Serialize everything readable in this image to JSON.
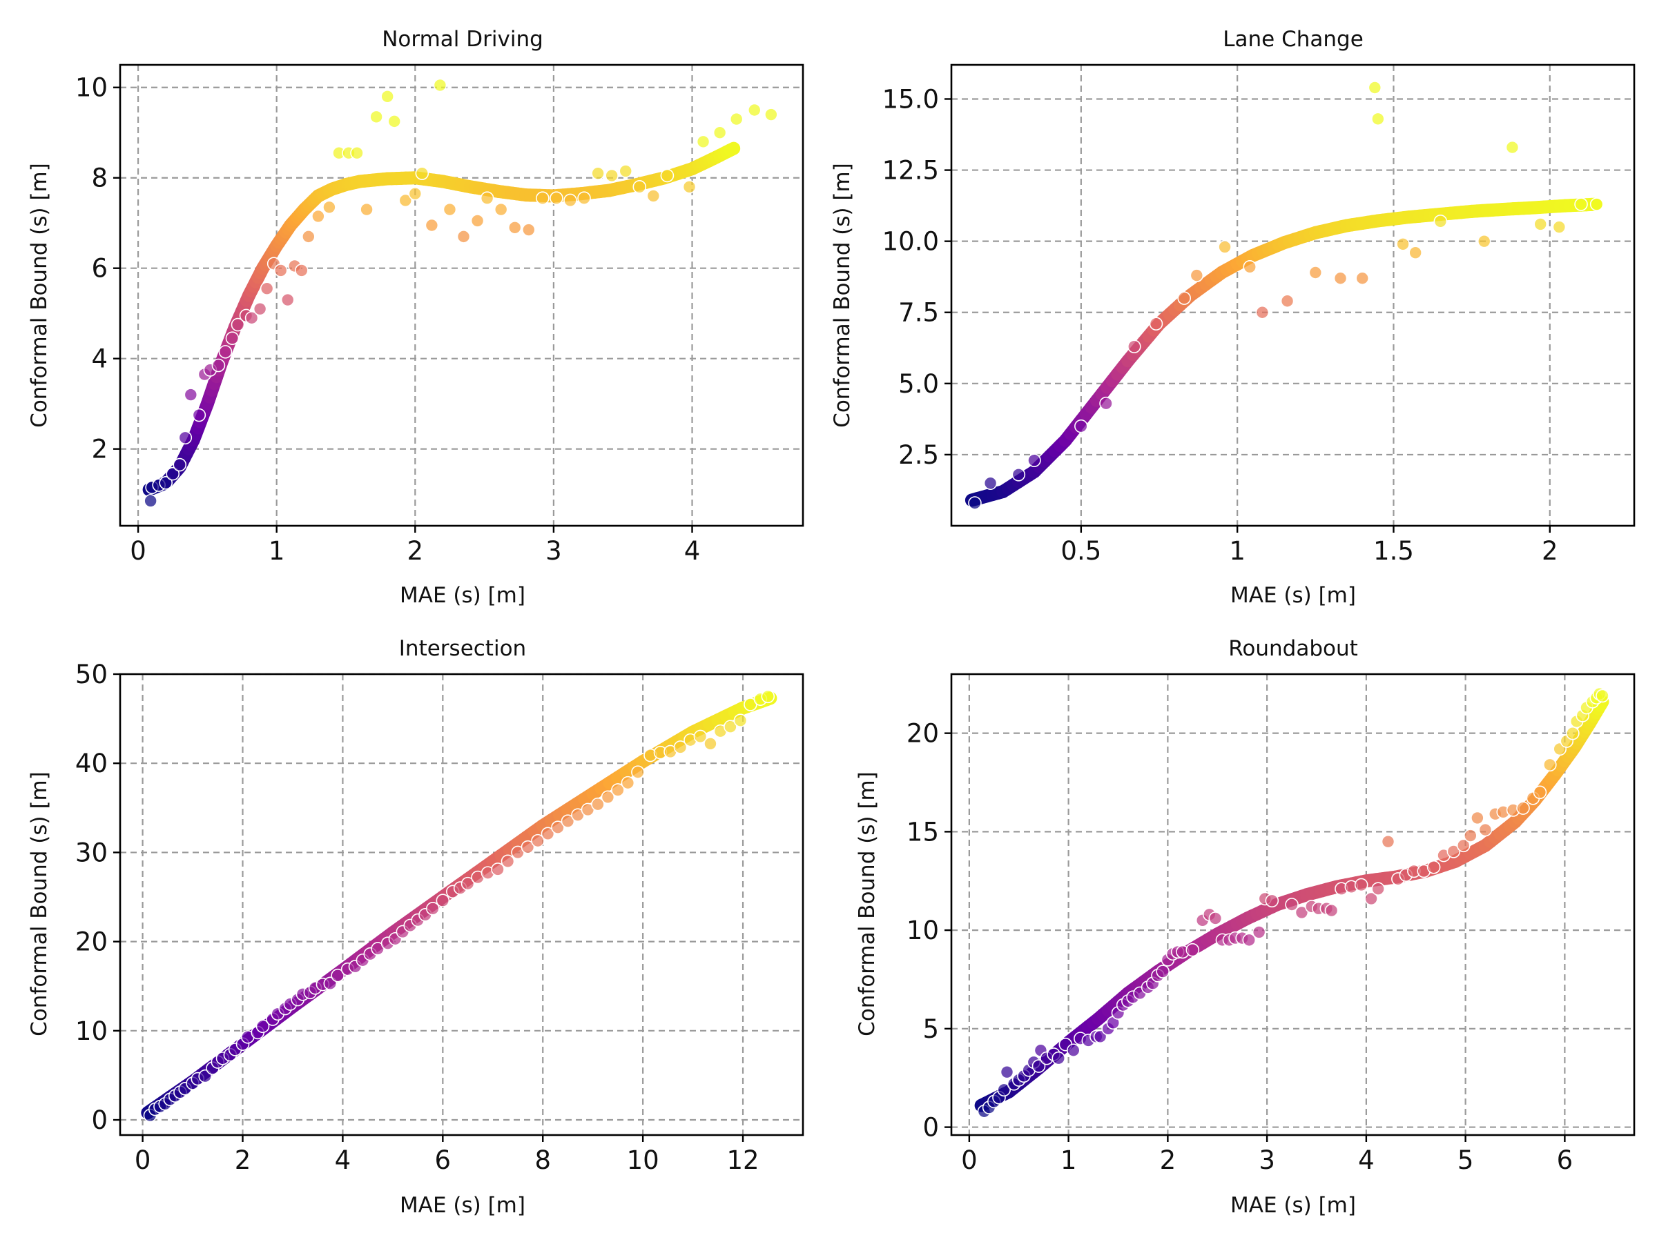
{
  "chart_data": [
    {
      "type": "scatter",
      "title": "Normal Driving",
      "xlabel": "MAE (s) [m]",
      "ylabel": "Conformal Bound (s) [m]",
      "xlim": [
        -0.13,
        4.8
      ],
      "ylim": [
        0.3,
        10.5
      ],
      "xticks": [
        0,
        1,
        2,
        3,
        4
      ],
      "yticks": [
        2,
        4,
        6,
        8,
        10
      ],
      "ytick_labels": [
        "2",
        "4",
        "6",
        "8",
        "10"
      ],
      "grid": true,
      "colormap": [
        "#0d0887",
        "#6a00a8",
        "#b12a90",
        "#e16462",
        "#fca636",
        "#f0f921"
      ],
      "trend": {
        "name": "fit",
        "x": [
          0.08,
          0.2,
          0.3,
          0.4,
          0.5,
          0.6,
          0.7,
          0.8,
          0.9,
          1.0,
          1.1,
          1.2,
          1.3,
          1.4,
          1.5,
          1.6,
          1.8,
          2.0,
          2.2,
          2.4,
          2.6,
          2.8,
          3.0,
          3.2,
          3.4,
          3.6,
          3.8,
          4.0,
          4.15,
          4.3
        ],
        "y": [
          1.1,
          1.25,
          1.6,
          2.2,
          3.0,
          3.9,
          4.7,
          5.4,
          6.0,
          6.5,
          6.95,
          7.3,
          7.6,
          7.75,
          7.85,
          7.92,
          7.98,
          8.0,
          7.92,
          7.8,
          7.7,
          7.62,
          7.6,
          7.65,
          7.72,
          7.85,
          8.0,
          8.2,
          8.42,
          8.65
        ]
      },
      "points": {
        "x": [
          0.09,
          0.1,
          0.15,
          0.2,
          0.25,
          0.3,
          0.34,
          0.38,
          0.44,
          0.48,
          0.52,
          0.58,
          0.63,
          0.68,
          0.72,
          0.78,
          0.82,
          0.88,
          0.93,
          0.98,
          1.03,
          1.08,
          1.13,
          1.18,
          1.23,
          1.3,
          1.38,
          1.45,
          1.52,
          1.58,
          1.65,
          1.72,
          1.8,
          1.85,
          1.93,
          2.0,
          2.05,
          2.12,
          2.18,
          2.25,
          2.35,
          2.45,
          2.52,
          2.62,
          2.72,
          2.82,
          2.92,
          3.02,
          3.12,
          3.22,
          3.32,
          3.42,
          3.52,
          3.62,
          3.72,
          3.82,
          3.98,
          4.08,
          4.2,
          4.32,
          4.45,
          4.57
        ],
        "y": [
          0.85,
          1.15,
          1.2,
          1.25,
          1.45,
          1.65,
          2.25,
          3.2,
          2.75,
          3.65,
          3.75,
          3.85,
          4.15,
          4.45,
          4.75,
          4.95,
          4.9,
          5.1,
          5.55,
          6.1,
          5.95,
          5.3,
          6.05,
          5.95,
          6.7,
          7.15,
          7.35,
          8.55,
          8.55,
          8.55,
          7.3,
          9.35,
          9.8,
          9.25,
          7.5,
          7.65,
          8.1,
          6.95,
          10.05,
          7.3,
          6.7,
          7.05,
          7.55,
          7.3,
          6.9,
          6.85,
          7.55,
          7.55,
          7.5,
          7.55,
          8.1,
          8.05,
          8.15,
          7.8,
          7.6,
          8.05,
          7.8,
          8.8,
          9.0,
          9.3,
          9.5,
          9.4
        ]
      }
    },
    {
      "type": "scatter",
      "title": "Lane Change",
      "xlabel": "MAE (s) [m]",
      "ylabel": "Conformal Bound (s) [m]",
      "xlim": [
        0.085,
        2.27
      ],
      "ylim": [
        0.0,
        16.2
      ],
      "xticks": [
        0.5,
        1.0,
        1.5,
        2.0
      ],
      "yticks": [
        2.5,
        5.0,
        7.5,
        10.0,
        12.5,
        15.0
      ],
      "ytick_labels": [
        "2.5",
        "5.0",
        "7.5",
        "10.0",
        "12.5",
        "15.0"
      ],
      "grid": true,
      "colormap": [
        "#0d0887",
        "#6a00a8",
        "#b12a90",
        "#e16462",
        "#fca636",
        "#f0f921"
      ],
      "trend": {
        "name": "fit",
        "x": [
          0.15,
          0.25,
          0.35,
          0.45,
          0.55,
          0.65,
          0.75,
          0.85,
          0.95,
          1.05,
          1.15,
          1.25,
          1.35,
          1.45,
          1.55,
          1.65,
          1.75,
          1.85,
          1.95,
          2.05,
          2.15
        ],
        "y": [
          0.9,
          1.2,
          1.9,
          3.0,
          4.4,
          5.8,
          7.1,
          8.1,
          8.9,
          9.5,
          9.95,
          10.3,
          10.55,
          10.72,
          10.85,
          10.95,
          11.05,
          11.12,
          11.18,
          11.25,
          11.3
        ]
      },
      "points": {
        "x": [
          0.16,
          0.21,
          0.3,
          0.35,
          0.5,
          0.58,
          0.67,
          0.74,
          0.83,
          0.87,
          0.96,
          1.04,
          1.08,
          1.16,
          1.25,
          1.33,
          1.4,
          1.44,
          1.45,
          1.53,
          1.57,
          1.65,
          1.79,
          1.88,
          1.97,
          2.03,
          2.1,
          2.15
        ],
        "y": [
          0.8,
          1.5,
          1.8,
          2.3,
          3.5,
          4.3,
          6.3,
          7.1,
          8.0,
          8.8,
          9.8,
          9.1,
          7.5,
          7.9,
          8.9,
          8.7,
          8.7,
          15.4,
          14.3,
          9.9,
          9.6,
          10.7,
          10.0,
          13.3,
          10.6,
          10.5,
          11.3,
          11.3
        ]
      }
    },
    {
      "type": "scatter",
      "title": "Intersection",
      "xlabel": "MAE (s) [m]",
      "ylabel": "Conformal Bound (s) [m]",
      "xlim": [
        -0.45,
        13.2
      ],
      "ylim": [
        -1.7,
        50
      ],
      "xticks": [
        0,
        2,
        4,
        6,
        8,
        10,
        12
      ],
      "yticks": [
        0,
        10,
        20,
        30,
        40,
        50
      ],
      "ytick_labels": [
        "0",
        "10",
        "20",
        "30",
        "40",
        "50"
      ],
      "grid": true,
      "colormap": [
        "#0d0887",
        "#6a00a8",
        "#b12a90",
        "#e16462",
        "#fca636",
        "#f0f921"
      ],
      "trend": {
        "name": "fit",
        "x": [
          0.1,
          1,
          2,
          3,
          4,
          5,
          6,
          7,
          8,
          9,
          10,
          11,
          12,
          12.55
        ],
        "y": [
          0.8,
          4.3,
          8.5,
          12.7,
          16.8,
          21.0,
          25.0,
          29.0,
          33.0,
          36.6,
          40.2,
          43.5,
          46.2,
          47.3
        ]
      },
      "points": {
        "x": [
          0.15,
          0.25,
          0.35,
          0.45,
          0.55,
          0.65,
          0.75,
          0.85,
          1.0,
          1.1,
          1.25,
          1.4,
          1.5,
          1.6,
          1.75,
          1.85,
          2.0,
          2.1,
          2.3,
          2.4,
          2.6,
          2.7,
          2.85,
          2.95,
          3.1,
          3.2,
          3.35,
          3.45,
          3.6,
          3.75,
          3.9,
          4.1,
          4.25,
          4.4,
          4.55,
          4.7,
          4.9,
          5.05,
          5.2,
          5.35,
          5.5,
          5.65,
          5.8,
          6.0,
          6.2,
          6.35,
          6.5,
          6.7,
          6.9,
          7.1,
          7.3,
          7.5,
          7.7,
          7.9,
          8.1,
          8.3,
          8.5,
          8.7,
          8.9,
          9.1,
          9.3,
          9.5,
          9.7,
          9.9,
          10.15,
          10.35,
          10.55,
          10.75,
          10.95,
          11.15,
          11.35,
          11.55,
          11.75,
          11.95,
          12.15,
          12.35,
          12.5
        ],
        "y": [
          0.5,
          1.2,
          1.5,
          1.8,
          2.3,
          2.7,
          3.1,
          3.5,
          4.1,
          4.6,
          4.9,
          5.8,
          6.5,
          6.9,
          7.3,
          7.9,
          8.5,
          9.3,
          9.8,
          10.5,
          11.3,
          11.9,
          12.5,
          13.0,
          13.5,
          14.1,
          14.3,
          14.8,
          15.2,
          15.3,
          16.2,
          16.9,
          17.2,
          17.9,
          18.6,
          19.2,
          19.8,
          20.3,
          21.1,
          21.8,
          22.4,
          23.0,
          23.7,
          24.6,
          25.6,
          26.0,
          26.5,
          27.2,
          27.7,
          28.1,
          29.0,
          30.0,
          30.6,
          31.3,
          32.1,
          32.8,
          33.5,
          34.2,
          34.8,
          35.4,
          36.2,
          37.0,
          37.8,
          39.0,
          40.9,
          41.2,
          41.3,
          41.8,
          42.6,
          43.0,
          42.2,
          43.6,
          44.1,
          44.8,
          46.6,
          47.2,
          47.5
        ]
      }
    },
    {
      "type": "scatter",
      "title": "Roundabout",
      "xlabel": "MAE (s) [m]",
      "ylabel": "Conformal Bound (s) [m]",
      "xlim": [
        -0.18,
        6.7
      ],
      "ylim": [
        -0.4,
        23
      ],
      "xticks": [
        0,
        1,
        2,
        3,
        4,
        5,
        6
      ],
      "yticks": [
        0,
        5,
        10,
        15,
        20
      ],
      "ytick_labels": [
        "0",
        "5",
        "10",
        "15",
        "20"
      ],
      "grid": true,
      "colormap": [
        "#0d0887",
        "#6a00a8",
        "#b12a90",
        "#e16462",
        "#fca636",
        "#f0f921"
      ],
      "trend": {
        "name": "fit",
        "x": [
          0.12,
          0.4,
          0.7,
          1.0,
          1.3,
          1.6,
          1.9,
          2.2,
          2.5,
          2.8,
          3.1,
          3.4,
          3.7,
          4.0,
          4.3,
          4.6,
          4.9,
          5.2,
          5.5,
          5.7,
          5.9,
          6.1,
          6.25,
          6.38
        ],
        "y": [
          1.1,
          1.8,
          3.0,
          4.3,
          5.5,
          6.8,
          7.9,
          8.9,
          9.8,
          10.6,
          11.3,
          11.8,
          12.2,
          12.5,
          12.7,
          13.0,
          13.5,
          14.3,
          15.5,
          16.6,
          17.9,
          19.3,
          20.5,
          21.6
        ]
      },
      "points": {
        "x": [
          0.15,
          0.2,
          0.25,
          0.3,
          0.35,
          0.38,
          0.45,
          0.5,
          0.55,
          0.6,
          0.65,
          0.7,
          0.72,
          0.78,
          0.85,
          0.9,
          0.97,
          1.05,
          1.12,
          1.2,
          1.28,
          1.32,
          1.4,
          1.45,
          1.5,
          1.55,
          1.6,
          1.65,
          1.72,
          1.8,
          1.85,
          1.9,
          1.95,
          2.0,
          2.05,
          2.1,
          2.15,
          2.25,
          2.35,
          2.42,
          2.48,
          2.55,
          2.62,
          2.68,
          2.75,
          2.82,
          2.92,
          2.98,
          3.05,
          3.25,
          3.35,
          3.45,
          3.52,
          3.6,
          3.65,
          3.75,
          3.85,
          3.95,
          4.05,
          4.12,
          4.22,
          4.32,
          4.4,
          4.48,
          4.58,
          4.68,
          4.78,
          4.88,
          4.98,
          5.05,
          5.12,
          5.2,
          5.3,
          5.38,
          5.48,
          5.58,
          5.68,
          5.75,
          5.85,
          5.95,
          6.02,
          6.08,
          6.12,
          6.18,
          6.22,
          6.28,
          6.32,
          6.35,
          6.38
        ],
        "y": [
          0.8,
          1.0,
          1.3,
          1.5,
          1.9,
          2.8,
          2.2,
          2.4,
          2.6,
          2.9,
          3.3,
          3.1,
          3.9,
          3.5,
          3.7,
          3.5,
          4.2,
          3.9,
          4.5,
          4.4,
          4.6,
          4.6,
          5.0,
          5.3,
          5.8,
          6.2,
          6.4,
          6.6,
          6.8,
          7.1,
          7.3,
          7.7,
          7.9,
          8.5,
          8.8,
          8.9,
          8.9,
          9.0,
          10.5,
          10.8,
          10.6,
          9.5,
          9.5,
          9.6,
          9.6,
          9.5,
          9.9,
          11.6,
          11.5,
          11.3,
          10.9,
          11.2,
          11.1,
          11.1,
          11.0,
          12.1,
          12.2,
          12.3,
          11.6,
          12.1,
          14.5,
          12.6,
          12.8,
          13.0,
          13.0,
          13.2,
          13.8,
          14.0,
          14.3,
          14.8,
          15.7,
          15.1,
          15.9,
          16.0,
          16.1,
          16.2,
          16.7,
          17.0,
          18.4,
          19.2,
          19.6,
          20.0,
          20.6,
          20.9,
          21.3,
          21.6,
          21.8,
          22.0,
          21.9
        ]
      }
    }
  ]
}
